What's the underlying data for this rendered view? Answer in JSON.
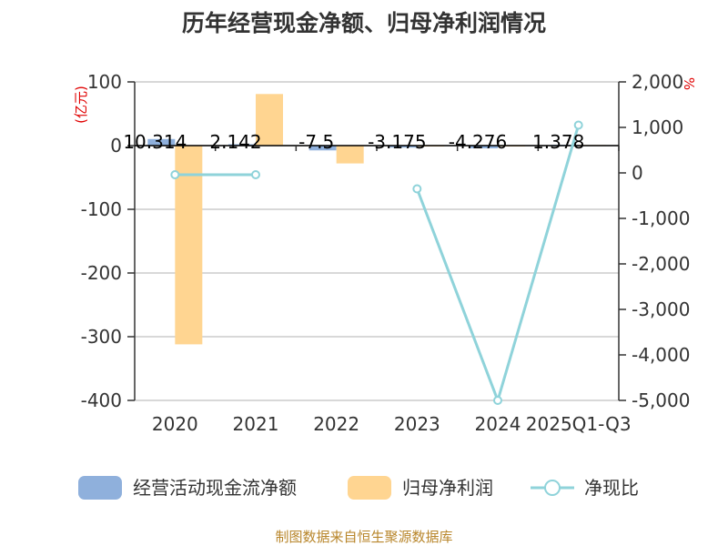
{
  "title": "历年经营现金净额、归母净利润情况",
  "source": "制图数据来自恒生聚源数据库",
  "colors": {
    "cash_flow": "#8fb0dc",
    "net_profit": "#ffd591",
    "ratio": "#8fd3da",
    "grid": "#cccccc",
    "axis": "#333333",
    "unit": "#e00000",
    "source": "#b8862b"
  },
  "chart_data": {
    "type": "bar",
    "title": "历年经营现金净额、归母净利润情况",
    "categories": [
      "2020",
      "2021",
      "2022",
      "2023",
      "2024",
      "2025Q1-Q3"
    ],
    "left_axis": {
      "label": "(亿元)",
      "ylim": [
        -400,
        100
      ],
      "ticks": [
        "100",
        "0",
        "-100",
        "-200",
        "-300",
        "-400"
      ],
      "tick_values": [
        100,
        0,
        -100,
        -200,
        -300,
        -400
      ]
    },
    "right_axis": {
      "label": "%",
      "ylim": [
        -5000,
        2000
      ],
      "ticks": [
        "2,000",
        "1,000",
        "0",
        "-1,000",
        "-2,000",
        "-3,000",
        "-4,000",
        "-5,000"
      ],
      "tick_values": [
        2000,
        1000,
        0,
        -1000,
        -2000,
        -3000,
        -4000,
        -5000
      ]
    },
    "series": [
      {
        "name": "经营活动现金流净额",
        "type": "bar",
        "axis": "left",
        "values": [
          10.314,
          2.142,
          -7.5,
          -3.175,
          -4.276,
          1.378
        ],
        "labels": [
          "10.314",
          "2.142",
          "-7.5",
          "-3.175",
          "-4.276",
          "1.378"
        ]
      },
      {
        "name": "归母净利润",
        "type": "bar",
        "axis": "left",
        "values": [
          -312,
          81,
          -28,
          -1,
          -1,
          1
        ]
      },
      {
        "name": "净现比",
        "type": "line",
        "axis": "right",
        "values": [
          -40,
          -40,
          null,
          -350,
          -5000,
          1050
        ]
      }
    ],
    "grid": true,
    "legend": "bottom"
  }
}
